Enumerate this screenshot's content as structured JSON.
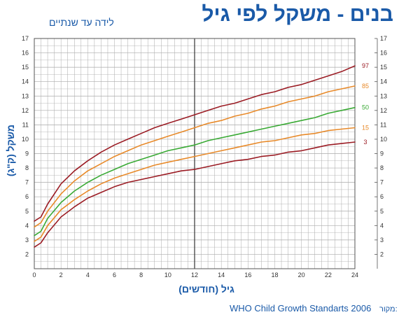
{
  "header": {
    "title": "בנים - משקל לפי גיל",
    "subtitle": "לידה עד שנתיים"
  },
  "footer": {
    "source_label": "מקור:",
    "source_text": "WHO Child Growth Standarts 2006"
  },
  "chart_data": {
    "type": "line",
    "title": "בנים - משקל לפי גיל",
    "subtitle": "לידה עד שנתיים",
    "xlabel": "גיל (חודשים)",
    "ylabel": "משקל (ק\"ג)",
    "xlim": [
      0,
      24
    ],
    "ylim": [
      1,
      17
    ],
    "xticks": [
      0,
      2,
      4,
      6,
      8,
      10,
      12,
      14,
      16,
      18,
      20,
      22,
      24
    ],
    "yticks": [
      2,
      3,
      4,
      5,
      6,
      7,
      8,
      9,
      10,
      11,
      12,
      13,
      14,
      15,
      16,
      17
    ],
    "grid": true,
    "x": [
      0,
      0.5,
      1,
      2,
      3,
      4,
      5,
      6,
      7,
      8,
      9,
      10,
      11,
      12,
      13,
      14,
      15,
      16,
      17,
      18,
      19,
      20,
      21,
      22,
      23,
      24
    ],
    "series": [
      {
        "name": "97",
        "color": "#9b1c24",
        "values": [
          4.3,
          4.6,
          5.5,
          6.9,
          7.8,
          8.5,
          9.1,
          9.6,
          10.0,
          10.4,
          10.8,
          11.1,
          11.4,
          11.7,
          12.0,
          12.3,
          12.5,
          12.8,
          13.1,
          13.3,
          13.6,
          13.8,
          14.1,
          14.4,
          14.7,
          15.1
        ]
      },
      {
        "name": "85",
        "color": "#e88a2a",
        "values": [
          3.9,
          4.2,
          5.0,
          6.2,
          7.1,
          7.8,
          8.3,
          8.8,
          9.2,
          9.6,
          9.9,
          10.2,
          10.5,
          10.8,
          11.1,
          11.3,
          11.6,
          11.8,
          12.1,
          12.3,
          12.6,
          12.8,
          13.0,
          13.3,
          13.5,
          13.7
        ]
      },
      {
        "name": "50",
        "color": "#3aaa35",
        "values": [
          3.3,
          3.6,
          4.5,
          5.6,
          6.4,
          7.0,
          7.5,
          7.9,
          8.3,
          8.6,
          8.9,
          9.2,
          9.4,
          9.6,
          9.9,
          10.1,
          10.3,
          10.5,
          10.7,
          10.9,
          11.1,
          11.3,
          11.5,
          11.8,
          12.0,
          12.2
        ]
      },
      {
        "name": "15",
        "color": "#e88a2a",
        "values": [
          2.9,
          3.2,
          4.0,
          5.1,
          5.8,
          6.4,
          6.9,
          7.3,
          7.6,
          7.9,
          8.2,
          8.4,
          8.6,
          8.8,
          9.0,
          9.2,
          9.4,
          9.6,
          9.8,
          9.9,
          10.1,
          10.3,
          10.4,
          10.6,
          10.7,
          10.8
        ]
      },
      {
        "name": "3",
        "color": "#9b1c24",
        "values": [
          2.5,
          2.8,
          3.5,
          4.6,
          5.3,
          5.9,
          6.3,
          6.7,
          7.0,
          7.2,
          7.4,
          7.6,
          7.8,
          7.9,
          8.1,
          8.3,
          8.5,
          8.6,
          8.8,
          8.9,
          9.1,
          9.2,
          9.4,
          9.6,
          9.7,
          9.8
        ]
      }
    ],
    "colors": {
      "axis_text": "#1a5aa8",
      "grid": "#aaaaaa",
      "year_line": "#333333"
    }
  }
}
